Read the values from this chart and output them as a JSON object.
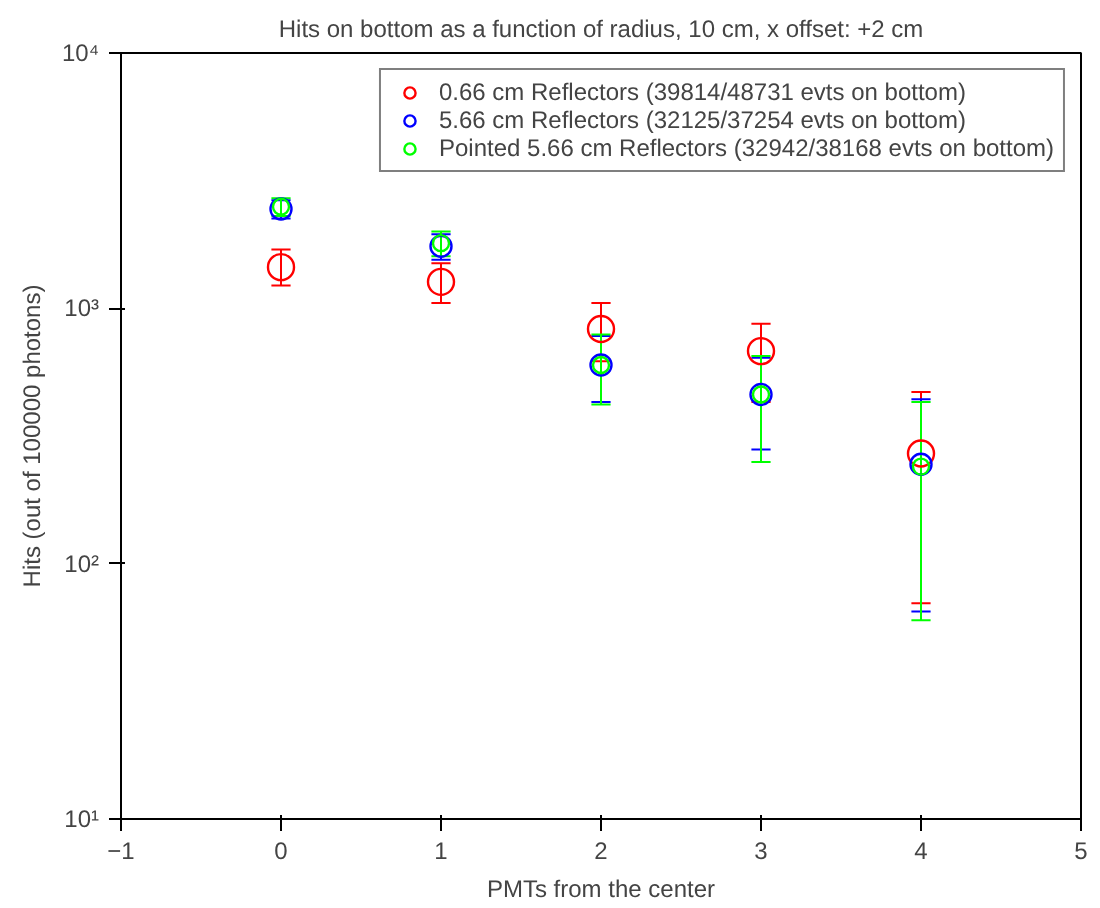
{
  "chart_data": {
    "type": "scatter",
    "title": "Hits on bottom as a function of radius, 10 cm, x offset: +2 cm",
    "xlabel": "PMTs from the center",
    "ylabel": "Hits (out of 100000 photons)",
    "x": [
      0,
      1,
      2,
      3,
      4
    ],
    "series": [
      {
        "name": "0.66 cm Reflectors (39814/48731 evts on bottom)",
        "color": "#ff0000",
        "values": [
          1450,
          1270,
          830,
          680,
          270
        ],
        "errors": [
          [
            1230,
            1700
          ],
          [
            1050,
            1500
          ],
          [
            620,
            1050
          ],
          [
            430,
            870
          ],
          [
            70,
            470
          ]
        ]
      },
      {
        "name": "5.66 cm Reflectors (32125/37254 evts on bottom)",
        "color": "#0000ff",
        "values": [
          2450,
          1750,
          600,
          460,
          245
        ],
        "errors": [
          [
            2250,
            2650
          ],
          [
            1550,
            1950
          ],
          [
            430,
            780
          ],
          [
            280,
            640
          ],
          [
            65,
            440
          ]
        ]
      },
      {
        "name": "Pointed 5.66 cm Reflectors (32942/38168 evts on bottom)",
        "color": "#00ff00",
        "values": [
          2500,
          1800,
          600,
          460,
          240
        ],
        "errors": [
          [
            2300,
            2700
          ],
          [
            1600,
            2000
          ],
          [
            420,
            790
          ],
          [
            250,
            650
          ],
          [
            60,
            430
          ]
        ]
      }
    ],
    "xlim": [
      -1,
      5
    ],
    "xticks": [
      -1,
      0,
      1,
      2,
      3,
      4,
      5
    ],
    "ylim": [
      10,
      10000
    ],
    "yticks": [
      {
        "value": 10,
        "label": "10¹"
      },
      {
        "value": 100,
        "label": "10²"
      },
      {
        "value": 1000,
        "label": "10³"
      },
      {
        "value": 10000,
        "label": "10⁴"
      }
    ],
    "log": "y",
    "grid": false,
    "legend": "top right",
    "marker": "circle"
  }
}
